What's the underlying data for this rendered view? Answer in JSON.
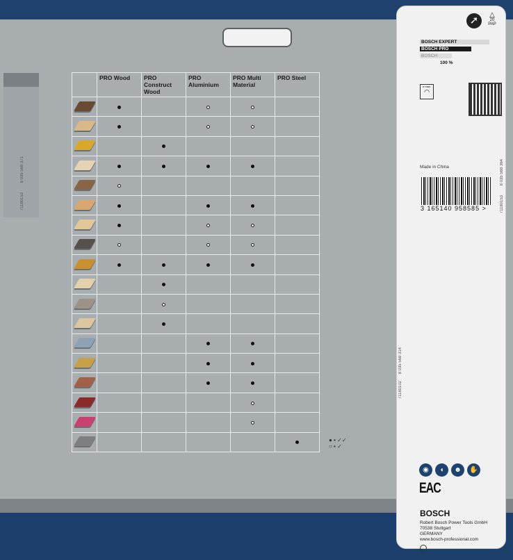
{
  "table": {
    "headers": [
      "PRO Wood",
      "PRO Construct Wood",
      "PRO Aluminium",
      "PRO Multi Material",
      "PRO Steel"
    ],
    "rows": [
      {
        "material_color": "#6b4a34",
        "marks": [
          "F",
          "",
          "O",
          "O",
          ""
        ]
      },
      {
        "material_color": "#d9b98a",
        "marks": [
          "F",
          "",
          "O",
          "O",
          ""
        ]
      },
      {
        "material_color": "#d9a72a",
        "marks": [
          "",
          "F",
          "",
          "",
          ""
        ]
      },
      {
        "material_color": "#e6d2b5",
        "marks": [
          "F",
          "F",
          "F",
          "F",
          ""
        ]
      },
      {
        "material_color": "#8a6446",
        "marks": [
          "O",
          "",
          "",
          "",
          ""
        ]
      },
      {
        "material_color": "#d8a66f",
        "marks": [
          "F",
          "",
          "F",
          "F",
          ""
        ]
      },
      {
        "material_color": "#e2c79b",
        "marks": [
          "F",
          "",
          "O",
          "O",
          ""
        ]
      },
      {
        "material_color": "#55504a",
        "marks": [
          "O",
          "",
          "O",
          "O",
          ""
        ]
      },
      {
        "material_color": "#c9902f",
        "marks": [
          "F",
          "F",
          "F",
          "F",
          ""
        ]
      },
      {
        "material_color": "#e4d0ad",
        "marks": [
          "",
          "F",
          "",
          "",
          ""
        ]
      },
      {
        "material_color": "#9c9388",
        "marks": [
          "",
          "O",
          "",
          "",
          ""
        ]
      },
      {
        "material_color": "#dcc6a0",
        "marks": [
          "",
          "F",
          "",
          "",
          ""
        ]
      },
      {
        "material_color": "#8fa2b3",
        "marks": [
          "",
          "",
          "F",
          "F",
          ""
        ]
      },
      {
        "material_color": "#c8a048",
        "marks": [
          "",
          "",
          "F",
          "F",
          ""
        ]
      },
      {
        "material_color": "#a0604a",
        "marks": [
          "",
          "",
          "F",
          "F",
          ""
        ]
      },
      {
        "material_color": "#8a2a2a",
        "marks": [
          "",
          "",
          "",
          "O",
          ""
        ]
      },
      {
        "material_color": "#c84070",
        "marks": [
          "",
          "",
          "",
          "O",
          ""
        ]
      },
      {
        "material_color": "#7d7f82",
        "marks": [
          "",
          "",
          "",
          "",
          "F"
        ]
      }
    ]
  },
  "legend": {
    "filled": "● ▪ ✓✓",
    "open": "○ ▪ ✓"
  },
  "left_tab": {
    "code1": "8 035 568 371",
    "code2": "71180153"
  },
  "middle_codes": {
    "code1": "8 035 568 314",
    "code2": "71180102"
  },
  "card": {
    "recycle_label": "20",
    "pap_label": "PAP",
    "levels": [
      "BOSCH EXPERT",
      "BOSCH PRO",
      "BOSCH"
    ],
    "level_percent": "100 %",
    "gauge_label": "n max.",
    "made_in": "Made in China",
    "barcode_number": "3 165140 958585 >",
    "side_code1": "8 035 568 364",
    "side_code2": "71180153",
    "eac": "EAC",
    "brand": "BOSCH",
    "address": [
      "Robert Bosch Power Tools GmbH",
      "70538 Stuttgart",
      "GERMANY",
      "www.bosch-professional.com"
    ]
  },
  "colors": {
    "navy": "#1d3f6b",
    "panel": "#a8adb0",
    "card": "#f1f1f1"
  }
}
